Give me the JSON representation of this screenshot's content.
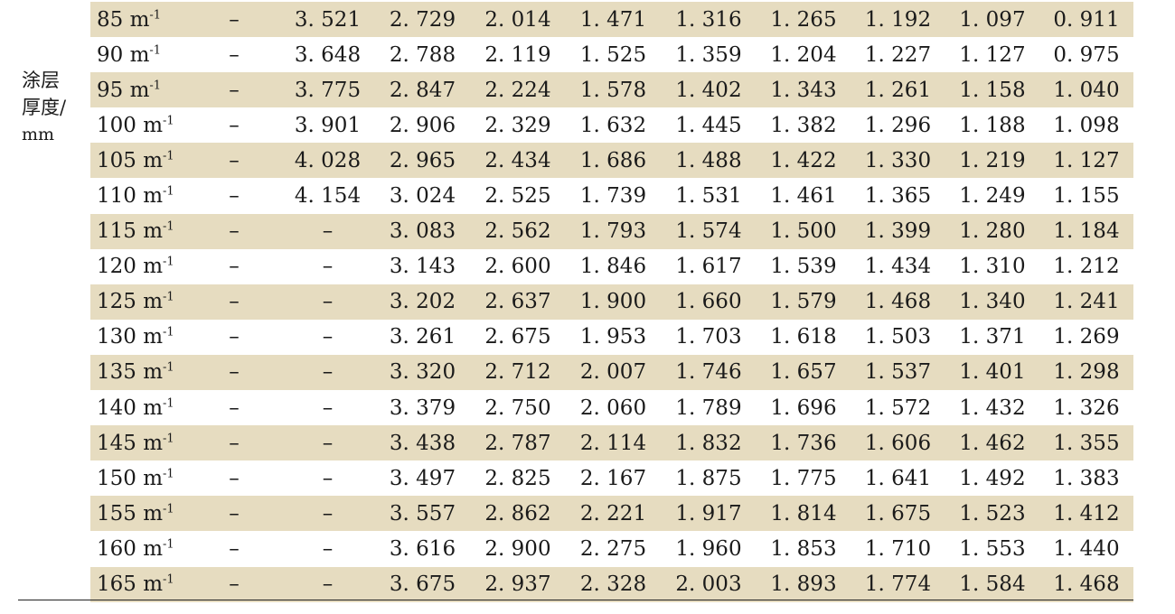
{
  "side_label": {
    "line1": "涂层",
    "line2": "厚度/",
    "line3": "mm"
  },
  "table": {
    "rows": [
      {
        "label": "85 m",
        "sup": "-1",
        "values": [
          "–",
          "3. 521",
          "2. 729",
          "2. 014",
          "1. 471",
          "1. 316",
          "1. 265",
          "1. 192",
          "1. 097",
          "0. 911"
        ]
      },
      {
        "label": "90 m",
        "sup": "-1",
        "values": [
          "–",
          "3. 648",
          "2. 788",
          "2. 119",
          "1. 525",
          "1. 359",
          "1. 204",
          "1. 227",
          "1. 127",
          "0. 975"
        ]
      },
      {
        "label": "95 m",
        "sup": "-1",
        "values": [
          "–",
          "3. 775",
          "2. 847",
          "2. 224",
          "1. 578",
          "1. 402",
          "1. 343",
          "1. 261",
          "1. 158",
          "1. 040"
        ]
      },
      {
        "label": "100 m",
        "sup": "-1",
        "values": [
          "–",
          "3. 901",
          "2. 906",
          "2. 329",
          "1. 632",
          "1. 445",
          "1. 382",
          "1. 296",
          "1. 188",
          "1. 098"
        ]
      },
      {
        "label": "105 m",
        "sup": "-1",
        "values": [
          "–",
          "4. 028",
          "2. 965",
          "2. 434",
          "1. 686",
          "1. 488",
          "1. 422",
          "1. 330",
          "1. 219",
          "1. 127"
        ]
      },
      {
        "label": "110 m",
        "sup": "-1",
        "values": [
          "–",
          "4. 154",
          "3. 024",
          "2. 525",
          "1. 739",
          "1. 531",
          "1. 461",
          "1. 365",
          "1. 249",
          "1. 155"
        ]
      },
      {
        "label": "115 m",
        "sup": "-1",
        "values": [
          "–",
          "–",
          "3. 083",
          "2. 562",
          "1. 793",
          "1. 574",
          "1. 500",
          "1. 399",
          "1. 280",
          "1. 184"
        ]
      },
      {
        "label": "120 m",
        "sup": "-1",
        "values": [
          "–",
          "–",
          "3. 143",
          "2. 600",
          "1. 846",
          "1. 617",
          "1. 539",
          "1. 434",
          "1. 310",
          "1. 212"
        ]
      },
      {
        "label": "125 m",
        "sup": "-1",
        "values": [
          "–",
          "–",
          "3. 202",
          "2. 637",
          "1. 900",
          "1. 660",
          "1. 579",
          "1. 468",
          "1. 340",
          "1. 241"
        ]
      },
      {
        "label": "130 m",
        "sup": "-1",
        "values": [
          "–",
          "–",
          "3. 261",
          "2. 675",
          "1. 953",
          "1. 703",
          "1. 618",
          "1. 503",
          "1. 371",
          "1. 269"
        ]
      },
      {
        "label": "135 m",
        "sup": "-1",
        "values": [
          "–",
          "–",
          "3. 320",
          "2. 712",
          "2. 007",
          "1. 746",
          "1. 657",
          "1. 537",
          "1. 401",
          "1. 298"
        ]
      },
      {
        "label": "140 m",
        "sup": "-1",
        "values": [
          "–",
          "–",
          "3. 379",
          "2. 750",
          "2. 060",
          "1. 789",
          "1. 696",
          "1. 572",
          "1. 432",
          "1. 326"
        ]
      },
      {
        "label": "145 m",
        "sup": "-1",
        "values": [
          "–",
          "–",
          "3. 438",
          "2. 787",
          "2. 114",
          "1. 832",
          "1. 736",
          "1. 606",
          "1. 462",
          "1. 355"
        ]
      },
      {
        "label": "150 m",
        "sup": "-1",
        "values": [
          "–",
          "–",
          "3. 497",
          "2. 825",
          "2. 167",
          "1. 875",
          "1. 775",
          "1. 641",
          "1. 492",
          "1. 383"
        ]
      },
      {
        "label": "155 m",
        "sup": "-1",
        "values": [
          "–",
          "–",
          "3. 557",
          "2. 862",
          "2. 221",
          "1. 917",
          "1. 814",
          "1. 675",
          "1. 523",
          "1. 412"
        ]
      },
      {
        "label": "160 m",
        "sup": "-1",
        "values": [
          "–",
          "–",
          "3. 616",
          "2. 900",
          "2. 275",
          "1. 960",
          "1. 853",
          "1. 710",
          "1. 553",
          "1. 440"
        ]
      },
      {
        "label": "165 m",
        "sup": "-1",
        "values": [
          "–",
          "–",
          "3. 675",
          "2. 937",
          "2. 328",
          "2. 003",
          "1. 893",
          "1. 774",
          "1. 584",
          "1. 468"
        ]
      }
    ]
  },
  "colors": {
    "row_shade": "#e6dcc0",
    "text": "#1a1a1a",
    "rule": "#222222"
  }
}
